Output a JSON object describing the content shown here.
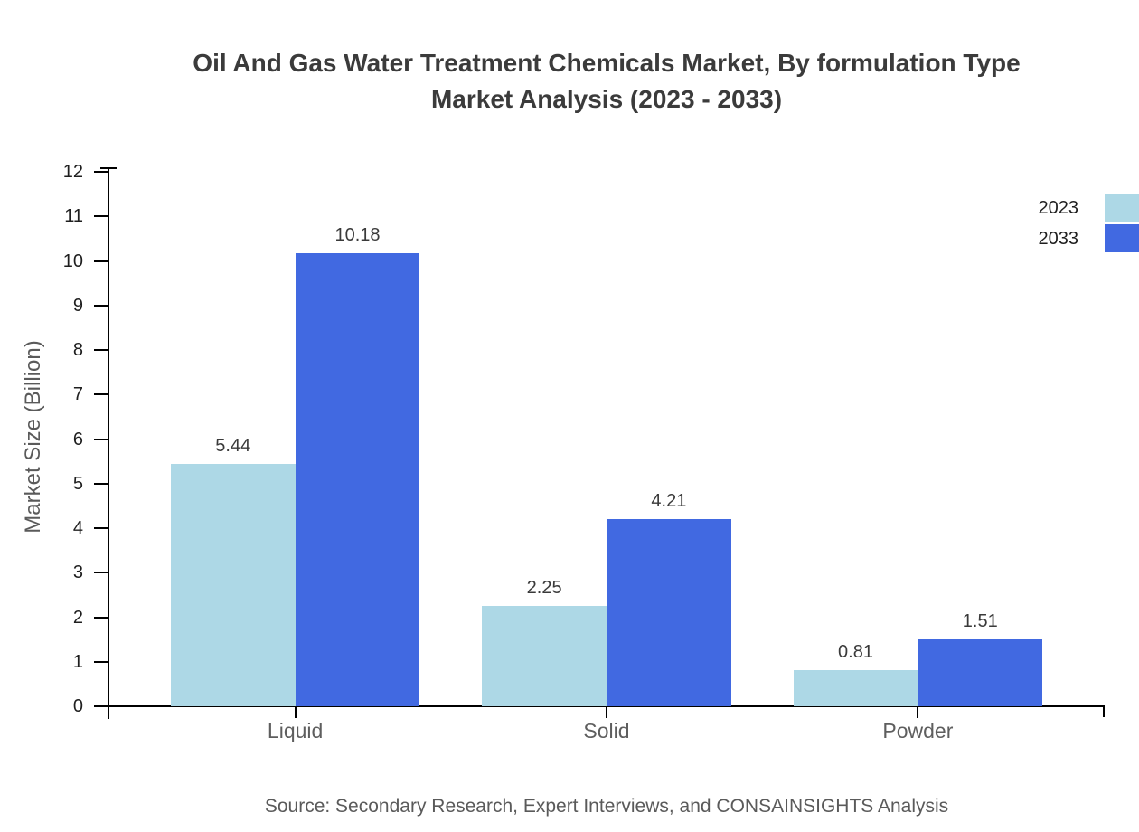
{
  "title": {
    "line1": "Oil And Gas Water Treatment Chemicals Market, By formulation Type",
    "line2": "Market Analysis (2023 - 2033)"
  },
  "source": "Source: Secondary Research, Expert Interviews, and CONSAINSIGHTS Analysis",
  "chart_data": {
    "type": "bar",
    "title": "Oil And Gas Water Treatment Chemicals Market, By formulation Type Market Analysis (2023 - 2033)",
    "categories": [
      "Liquid",
      "Solid",
      "Powder"
    ],
    "series": [
      {
        "name": "2023",
        "values": [
          5.44,
          2.25,
          0.81
        ],
        "color": "#ADD8E6"
      },
      {
        "name": "2033",
        "values": [
          10.18,
          4.21,
          1.51
        ],
        "color": "#4169E1"
      }
    ],
    "value_labels": [
      "5.44",
      "10.18",
      "2.25",
      "4.21",
      "0.81",
      "1.51"
    ],
    "xlabel": "",
    "ylabel": "Market Size (Billion)",
    "ylim": [
      0,
      12
    ],
    "yticks": [
      0,
      1,
      2,
      3,
      4,
      5,
      6,
      7,
      8,
      9,
      10,
      11,
      12
    ],
    "grid": false,
    "legend_position": "upper-right-outside",
    "axis_color": "#000000",
    "text_colors": {
      "title": "#3b3b3b",
      "tick_labels": "#1f1f1f",
      "category_labels": "#5e5e5e",
      "value_labels": "#3a3a3a",
      "source": "#5a5a5a"
    }
  }
}
